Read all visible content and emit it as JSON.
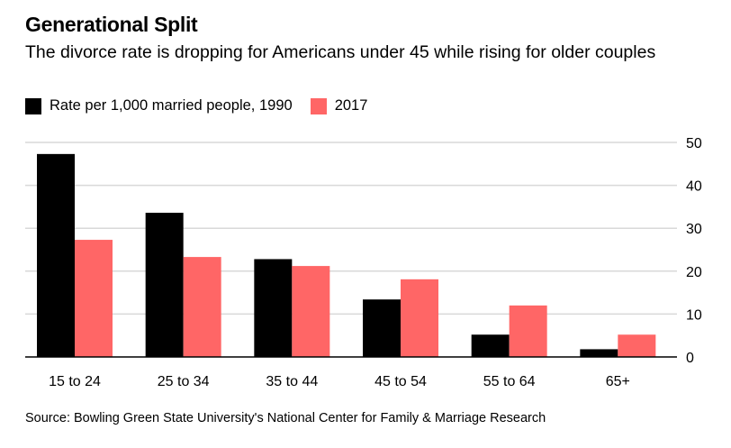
{
  "header": {
    "title": "Generational Split",
    "subtitle": "The divorce rate is dropping for Americans under 45 while rising for older couples"
  },
  "legend": {
    "items": [
      {
        "label": "Rate per 1,000 married people, 1990",
        "color": "#000000"
      },
      {
        "label": "2017",
        "color": "#ff6666"
      }
    ]
  },
  "source": "Source: Bowling Green State University's National Center for Family & Marriage Research",
  "chart_data": {
    "type": "bar",
    "categories": [
      "15 to 24",
      "25 to 34",
      "35 to 44",
      "45 to 54",
      "55 to 64",
      "65+"
    ],
    "series": [
      {
        "name": "Rate per 1,000 married people, 1990",
        "color": "#000000",
        "values": [
          47.3,
          33.6,
          22.8,
          13.4,
          5.2,
          1.8
        ]
      },
      {
        "name": "2017",
        "color": "#ff6666",
        "values": [
          27.3,
          23.3,
          21.2,
          18.1,
          12.0,
          5.2
        ]
      }
    ],
    "ylim": [
      0,
      50
    ],
    "yticks": [
      0,
      10,
      20,
      30,
      40,
      50
    ],
    "y_axis_side": "right",
    "grid": true,
    "legend_position": "top-left"
  }
}
